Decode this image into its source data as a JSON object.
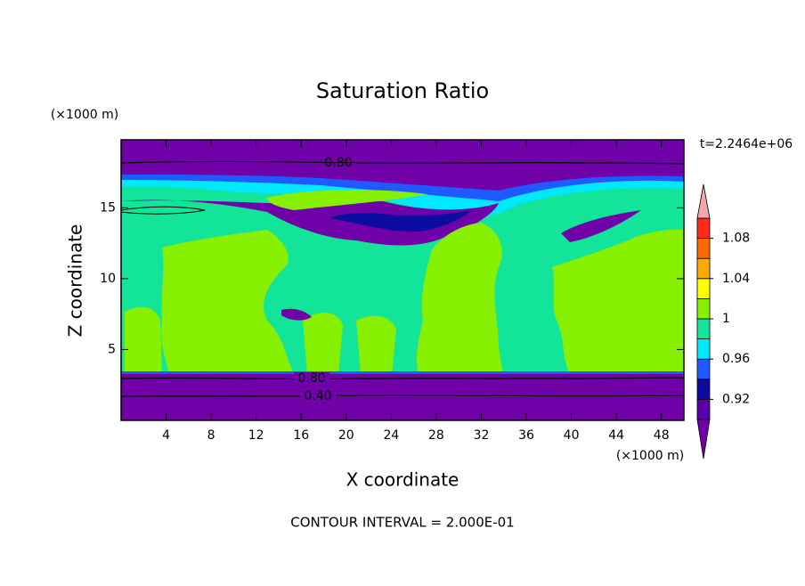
{
  "chart_data": {
    "type": "contour",
    "title": "Saturation Ratio",
    "x_label": "X coordinate",
    "y_label": "Z coordinate",
    "x_units": "(×1000 m)",
    "y_units": "(×1000 m)",
    "time_label": "t=2.2464e+06",
    "footer": "CONTOUR INTERVAL = 2.000E-01",
    "xlim": [
      0,
      50
    ],
    "xticks": [
      4,
      8,
      12,
      16,
      20,
      24,
      28,
      32,
      36,
      40,
      44,
      48
    ],
    "ylim": [
      0,
      19.8
    ],
    "yticks": [
      5,
      10,
      15
    ],
    "levels": [
      0.9,
      0.92,
      0.94,
      0.96,
      0.98,
      1,
      1.02,
      1.04,
      1.06,
      1.08,
      1.1
    ],
    "colors": [
      "#5a00a8",
      "#0c0ca0",
      "#1e5aff",
      "#00e8ff",
      "#12e49a",
      "#86f000",
      "#ffff00",
      "#ffa800",
      "#ff6a00",
      "#ff2a1a"
    ],
    "below_color": "#7000a8",
    "above_color": "#f0a8a8",
    "colorbar_ticks": [
      0.92,
      0.96,
      1,
      1.04,
      1.08
    ],
    "contour_labels": [
      {
        "value": 0.8,
        "label": "0.80"
      },
      {
        "value": 0.8,
        "label": "0.80"
      },
      {
        "value": 0.4,
        "label": "0.40"
      }
    ]
  }
}
